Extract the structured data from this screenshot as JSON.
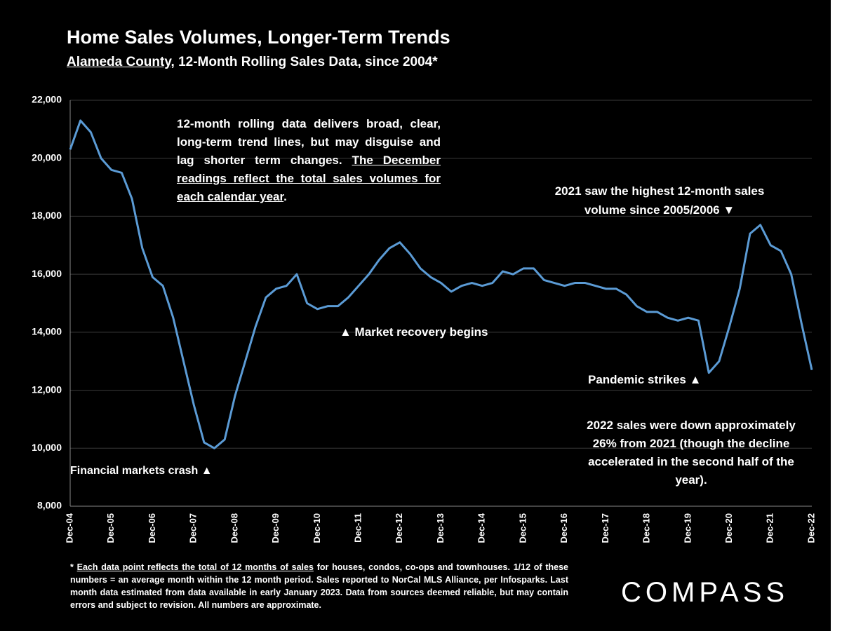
{
  "chart_data": {
    "type": "line",
    "title": "Home Sales Volumes, Longer-Term Trends",
    "subtitle": [
      "Alameda County",
      ", 12-Month Rolling Sales Data, since 2004*"
    ],
    "categories": [
      "Dec-04",
      null,
      null,
      null,
      "Dec-05",
      null,
      null,
      null,
      "Dec-06",
      null,
      null,
      null,
      "Dec-07",
      null,
      null,
      null,
      "Dec-08",
      null,
      null,
      null,
      "Dec-09",
      null,
      null,
      null,
      "Dec-10",
      null,
      null,
      null,
      "Dec-11",
      null,
      null,
      null,
      "Dec-12",
      null,
      null,
      null,
      "Dec-13",
      null,
      null,
      null,
      "Dec-14",
      null,
      null,
      null,
      "Dec-15",
      null,
      null,
      null,
      "Dec-16",
      null,
      null,
      null,
      "Dec-17",
      null,
      null,
      null,
      "Dec-18",
      null,
      null,
      null,
      "Dec-19",
      null,
      null,
      null,
      "Dec-20",
      null,
      null,
      null,
      "Dec-21",
      null,
      null,
      null,
      "Dec-22"
    ],
    "series": [
      {
        "color": "#5b9bd5",
        "values": [
          20300,
          21300,
          20900,
          20000,
          19600,
          19500,
          18600,
          16900,
          15900,
          15600,
          14500,
          13000,
          11500,
          10200,
          10000,
          10300,
          11800,
          13000,
          14200,
          15200,
          15500,
          15600,
          16000,
          15000,
          14800,
          14900,
          14900,
          15200,
          15600,
          16000,
          16500,
          16900,
          17100,
          16700,
          16200,
          15900,
          15700,
          15400,
          15600,
          15700,
          15600,
          15700,
          16100,
          16000,
          16200,
          16200,
          15800,
          15700,
          15600,
          15700,
          15700,
          15600,
          15500,
          15500,
          15300,
          14900,
          14700,
          14700,
          14500,
          14400,
          14500,
          14400,
          12600,
          13000,
          14200,
          15500,
          17400,
          17700,
          17000,
          16800,
          16000,
          14300,
          12700
        ]
      }
    ],
    "ylim": [
      8000,
      22000
    ],
    "yticks": [
      {
        "value": 8000,
        "label": "8,000"
      },
      {
        "value": 10000,
        "label": "10,000"
      },
      {
        "value": 12000,
        "label": "12,000"
      },
      {
        "value": 14000,
        "label": "14,000"
      },
      {
        "value": 16000,
        "label": "16,000"
      },
      {
        "value": 18000,
        "label": "18,000"
      },
      {
        "value": 20000,
        "label": "20,000"
      },
      {
        "value": 22000,
        "label": "22,000"
      }
    ],
    "grid": true,
    "note": [
      "12-month rolling data delivers broad, clear, long-term trend lines, but may disguise and lag shorter term changes. ",
      "The December readings reflect the total sales volumes for each calendar year",
      "."
    ],
    "annotations": [
      "2021 saw the highest 12-month sales volume since 2005/2006 ▼",
      "▲ Market recovery begins",
      "Pandemic strikes ▲",
      "2022 sales were down approximately 26% from 2021 (though the decline accelerated in the second half of the year).",
      "Financial markets crash ▲"
    ],
    "footnote": [
      "* ",
      "Each data point reflects the total of 12 months of sales",
      " for houses, condos, co-ops and townhouses. 1/12 of these numbers = an average month within the 12 month period. Sales reported to NorCal MLS Alliance, per Infosparks. Last month data estimated from data available in early January 2023. Data from sources deemed reliable, but may contain errors and subject to revision. All numbers are approximate."
    ],
    "logo": "COMPASS"
  }
}
